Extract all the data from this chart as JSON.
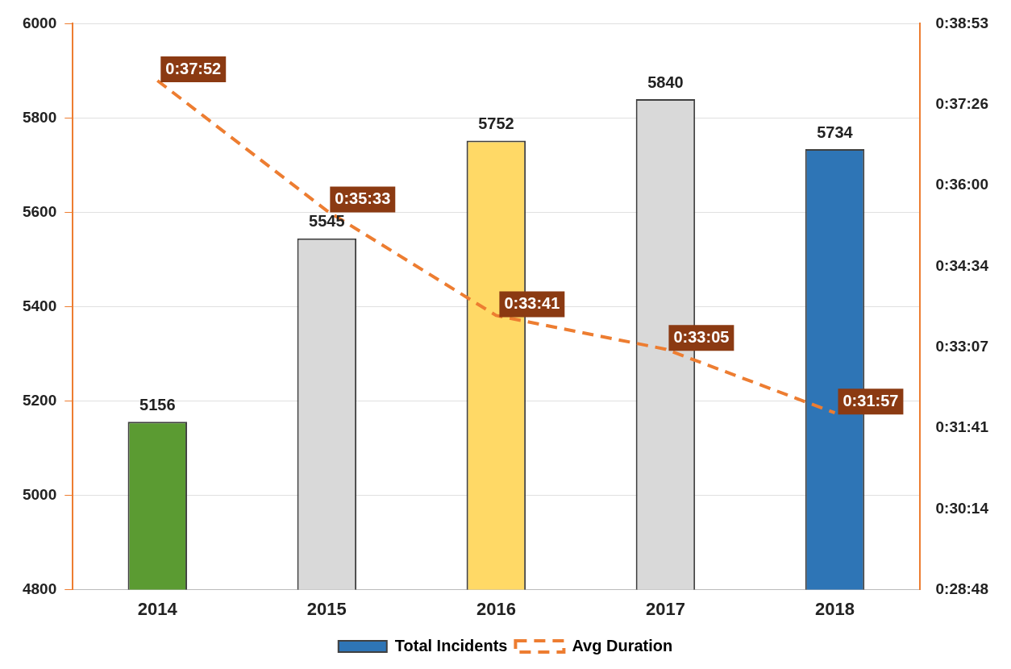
{
  "chart_data": {
    "type": "bar",
    "categories": [
      "2014",
      "2015",
      "2016",
      "2017",
      "2018"
    ],
    "series": [
      {
        "name": "Total Incidents",
        "color": "#2e75b6",
        "colors": [
          "#5b9b32",
          "#d9d9d9",
          "#ffd966",
          "#d9d9d9",
          "#2e75b6"
        ],
        "values": [
          5156,
          5545,
          5752,
          5840,
          5734
        ]
      },
      {
        "name": "Avg Duration",
        "type": "line",
        "axis": "y2",
        "color": "#ed7d31",
        "line_style": "dashed",
        "marker": "none",
        "values": [
          0.63111,
          0.5925,
          0.56139,
          0.55139,
          0.5325
        ],
        "value_labels": [
          "0:37:52",
          "0:35:33",
          "0:33:41",
          "0:33:05",
          "0:31:57"
        ]
      }
    ],
    "data_labels": true,
    "ylim": [
      4800,
      6000
    ],
    "yticks": [
      4800,
      5000,
      5200,
      5400,
      5600,
      5800,
      6000
    ],
    "y2lim": [
      0.48,
      0.648
    ],
    "y2ticks": [
      {
        "value": 0.48,
        "label": "0:28:48"
      },
      {
        "value": 0.504,
        "label": "0:30:14"
      },
      {
        "value": 0.528,
        "label": "0:31:41"
      },
      {
        "value": 0.552,
        "label": "0:33:07"
      },
      {
        "value": 0.576,
        "label": "0:34:34"
      },
      {
        "value": 0.6,
        "label": "0:36:00"
      },
      {
        "value": 0.624,
        "label": "0:37:26"
      },
      {
        "value": 0.648,
        "label": "0:38:53"
      }
    ],
    "grid": "y",
    "legend": "bottom"
  }
}
